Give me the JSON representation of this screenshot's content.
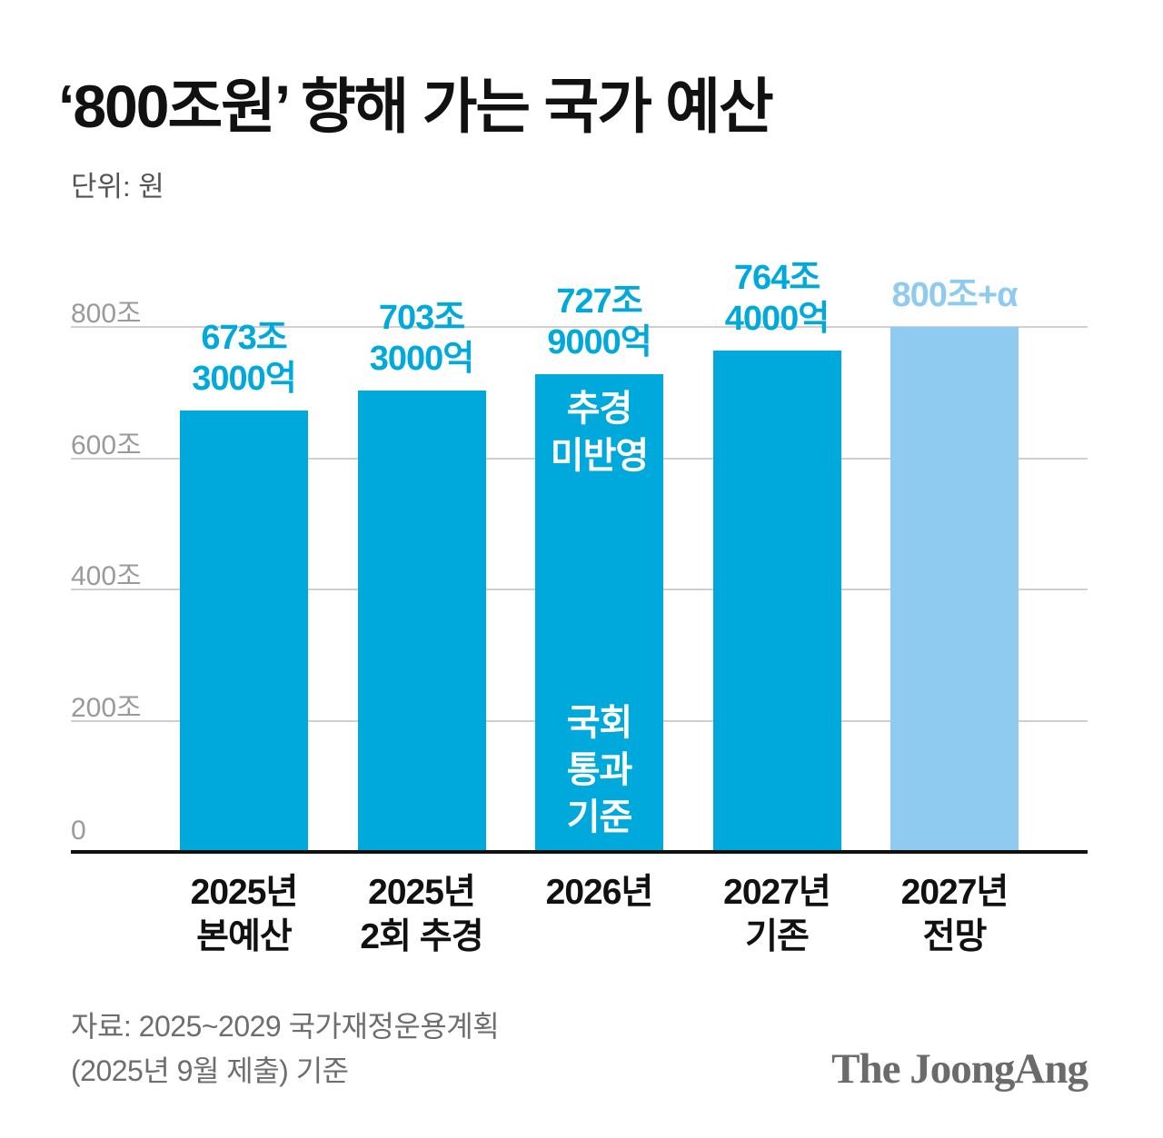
{
  "header": {
    "title": "‘800조원’ 향해 가는 국가 예산",
    "unit_label": "단위: 원"
  },
  "chart_data": {
    "type": "bar",
    "title": "‘800조원’ 향해 가는 국가 예산",
    "unit": "원",
    "ylim": [
      0,
      800
    ],
    "grid": "horizontal",
    "yticks": [
      {
        "value": 0,
        "label": "0"
      },
      {
        "value": 200,
        "label": "200조"
      },
      {
        "value": 400,
        "label": "400조"
      },
      {
        "value": 600,
        "label": "600조"
      },
      {
        "value": 800,
        "label": "800조"
      }
    ],
    "colors": {
      "main": "#00a9db",
      "light": "#8fcbf0"
    },
    "bars": [
      {
        "category_lines": [
          "2025년",
          "본예산"
        ],
        "value_trillion": 673.3,
        "value_label_lines": [
          "673조",
          "3000억"
        ],
        "color": "main",
        "annotations": []
      },
      {
        "category_lines": [
          "2025년",
          "2회 추경"
        ],
        "value_trillion": 703.3,
        "value_label_lines": [
          "703조",
          "3000억"
        ],
        "color": "main",
        "annotations": []
      },
      {
        "category_lines": [
          "2026년"
        ],
        "value_trillion": 727.9,
        "value_label_lines": [
          "727조",
          "9000억"
        ],
        "color": "main",
        "annotations": [
          {
            "position": "top",
            "lines": [
              "추경",
              "미반영"
            ]
          },
          {
            "position": "bottom",
            "lines": [
              "국회",
              "통과",
              "기준"
            ]
          }
        ]
      },
      {
        "category_lines": [
          "2027년",
          "기존"
        ],
        "value_trillion": 764.4,
        "value_label_lines": [
          "764조",
          "4000억"
        ],
        "color": "main",
        "annotations": []
      },
      {
        "category_lines": [
          "2027년",
          "전망"
        ],
        "value_trillion": 800,
        "open_ended": true,
        "value_label_lines": [
          "800조+α"
        ],
        "color": "light",
        "annotations": []
      }
    ]
  },
  "source": {
    "line1": "자료: 2025~2029 국가재정운용계획",
    "line2": "(2025년 9월 제출) 기준"
  },
  "logo": {
    "text": "The JoongAng"
  }
}
